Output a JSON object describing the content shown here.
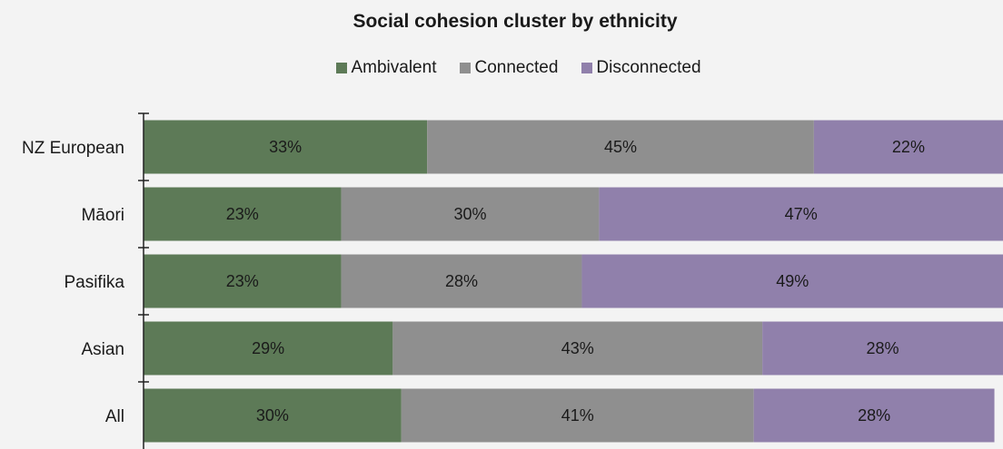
{
  "chart_data": {
    "type": "bar",
    "orientation": "horizontal",
    "stacked": true,
    "title": "Social cohesion cluster by ethnicity",
    "categories": [
      "NZ European",
      "Māori",
      "Pasifika",
      "Asian",
      "All"
    ],
    "series": [
      {
        "name": "Ambivalent",
        "color": "#5d7a57",
        "values": [
          33,
          23,
          23,
          29,
          30
        ]
      },
      {
        "name": "Connected",
        "color": "#8f8f8f",
        "values": [
          45,
          30,
          28,
          43,
          41
        ]
      },
      {
        "name": "Disconnected",
        "color": "#9080ab",
        "values": [
          22,
          47,
          49,
          28,
          28
        ]
      }
    ],
    "value_suffix": "%",
    "xlim": [
      0,
      100
    ],
    "legend_position": "top",
    "grid": false
  }
}
